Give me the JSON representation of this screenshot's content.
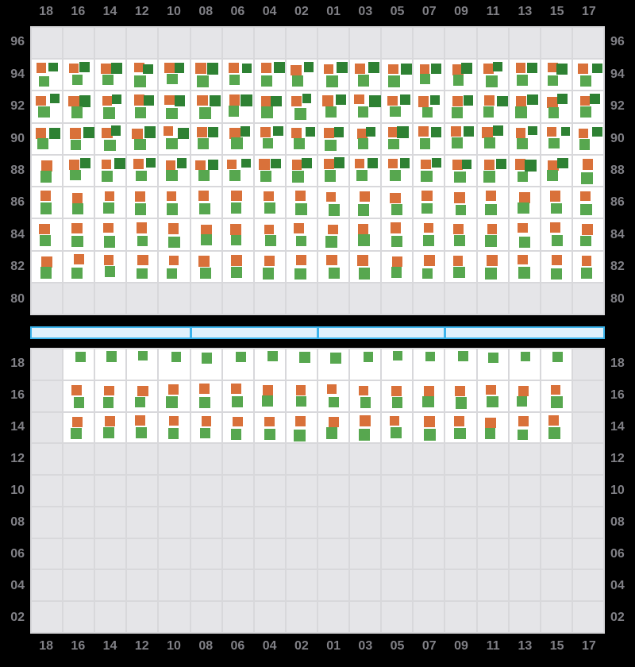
{
  "colors": {
    "background": "#000000",
    "axis_label": "#808086",
    "grid_line": "#D8D8DB",
    "empty_cell": "#E5E5E8",
    "data_cell": "#FFFFFF",
    "orange": "#D9713A",
    "dark_green": "#2E8133",
    "light_green": "#57A74F",
    "scrollbar_border": "#3CB4EC",
    "scrollbar_fill": "#DEF0FB"
  },
  "chart_data": {
    "type": "heatmap",
    "title": "",
    "grid": true,
    "columns": [
      "18",
      "16",
      "14",
      "12",
      "10",
      "08",
      "06",
      "04",
      "02",
      "01",
      "03",
      "05",
      "07",
      "09",
      "11",
      "13",
      "15",
      "17"
    ],
    "x_axis_shown": [
      "top",
      "bottom"
    ],
    "y_axis_shown": [
      "left",
      "right"
    ],
    "marker_legend": {
      "T": "orange + dark-green + light-green squares",
      "D": "orange + light-green squares",
      "G": "single light-green square",
      "-": "empty gray cell"
    },
    "panels": [
      {
        "name": "upper",
        "row_labels": [
          "96",
          "94",
          "92",
          "90",
          "88",
          "86",
          "84",
          "82",
          "80"
        ],
        "cells": [
          "------------------",
          "TTTTTTTTTTTTTTTTTT",
          "TTTTTTTTTTTTTTTTTT",
          "TTTTTTTTTTTTTTTTTT",
          "DTTTTTTTTTTTTTTTTD",
          "DDDDDDDDDDDDDDDDDD",
          "DDDDDDDDDDDDDDDDDD",
          "DDDDDDDDDDDDDDDDDD",
          "------------------"
        ]
      },
      {
        "name": "lower",
        "row_labels": [
          "18",
          "16",
          "14",
          "12",
          "10",
          "08",
          "06",
          "04",
          "02"
        ],
        "cells": [
          "-GGGGGGGGGGGGGGGG-",
          "-DDDDDDDDDDDDDDDD-",
          "-DDDDDDDDDDDDDDDD-",
          "------------------",
          "------------------",
          "------------------",
          "------------------",
          "------------------",
          "------------------"
        ]
      }
    ],
    "scrollbar": {
      "segments": 4,
      "divider_columns": [
        5,
        9,
        13
      ]
    }
  }
}
